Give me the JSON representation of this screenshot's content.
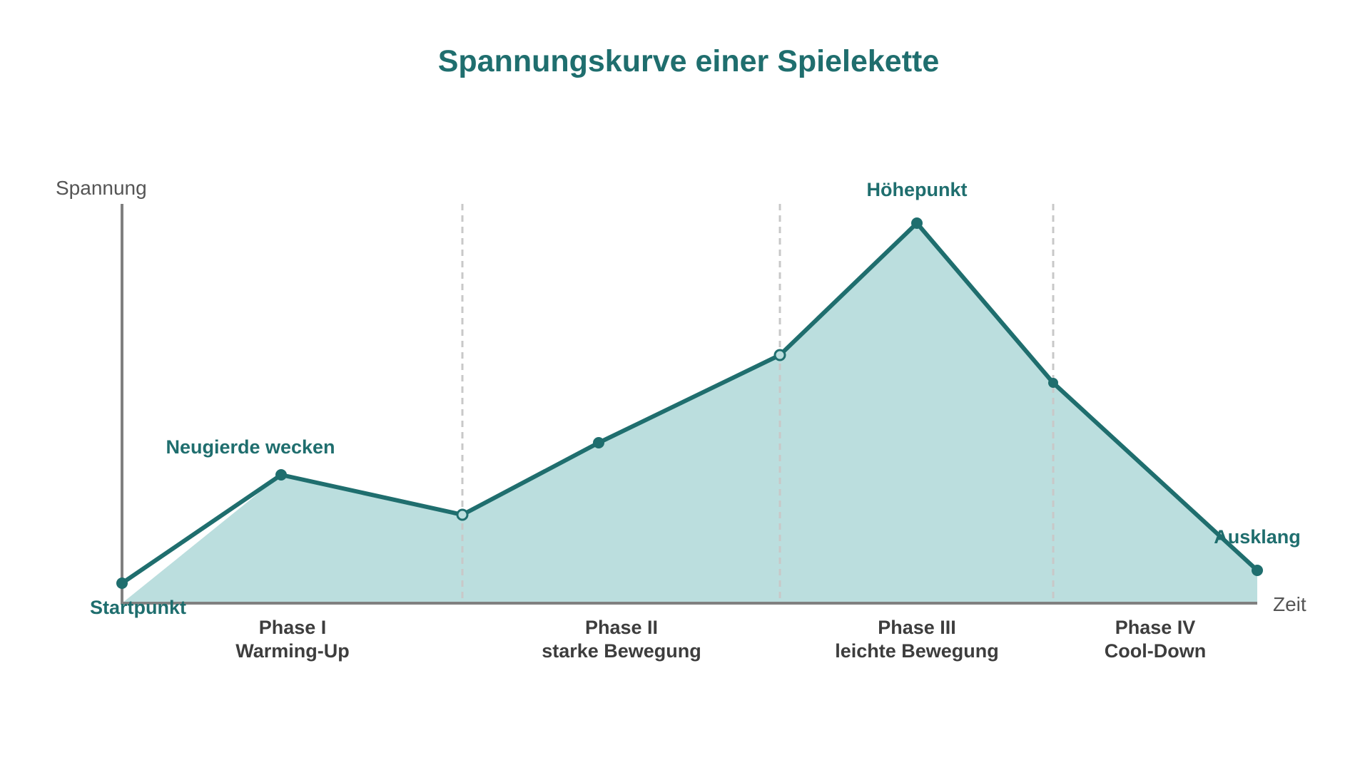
{
  "title": "Spannungskurve einer Spielekette",
  "y_axis_label": "Spannung",
  "x_axis_label": "Zeit",
  "colors": {
    "title": "#1f6e6e",
    "line": "#1f6e6e",
    "fill": "#bbdede",
    "axis": "#808080",
    "divider": "#c8c8c8",
    "phase_text": "#3d3d3d",
    "axis_text": "#555555"
  },
  "annotations": [
    {
      "id": "start",
      "text": "Startpunkt"
    },
    {
      "id": "curiosity",
      "text": "Neugierde wecken"
    },
    {
      "id": "peak",
      "text": "Höhepunkt"
    },
    {
      "id": "finale",
      "text": "Ausklang"
    }
  ],
  "phases": [
    {
      "name": "Phase I",
      "subtitle": "Warming-Up"
    },
    {
      "name": "Phase II",
      "subtitle": "starke Bewegung"
    },
    {
      "name": "Phase III",
      "subtitle": "leichte Bewegung"
    },
    {
      "name": "Phase IV",
      "subtitle": "Cool-Down"
    }
  ]
}
